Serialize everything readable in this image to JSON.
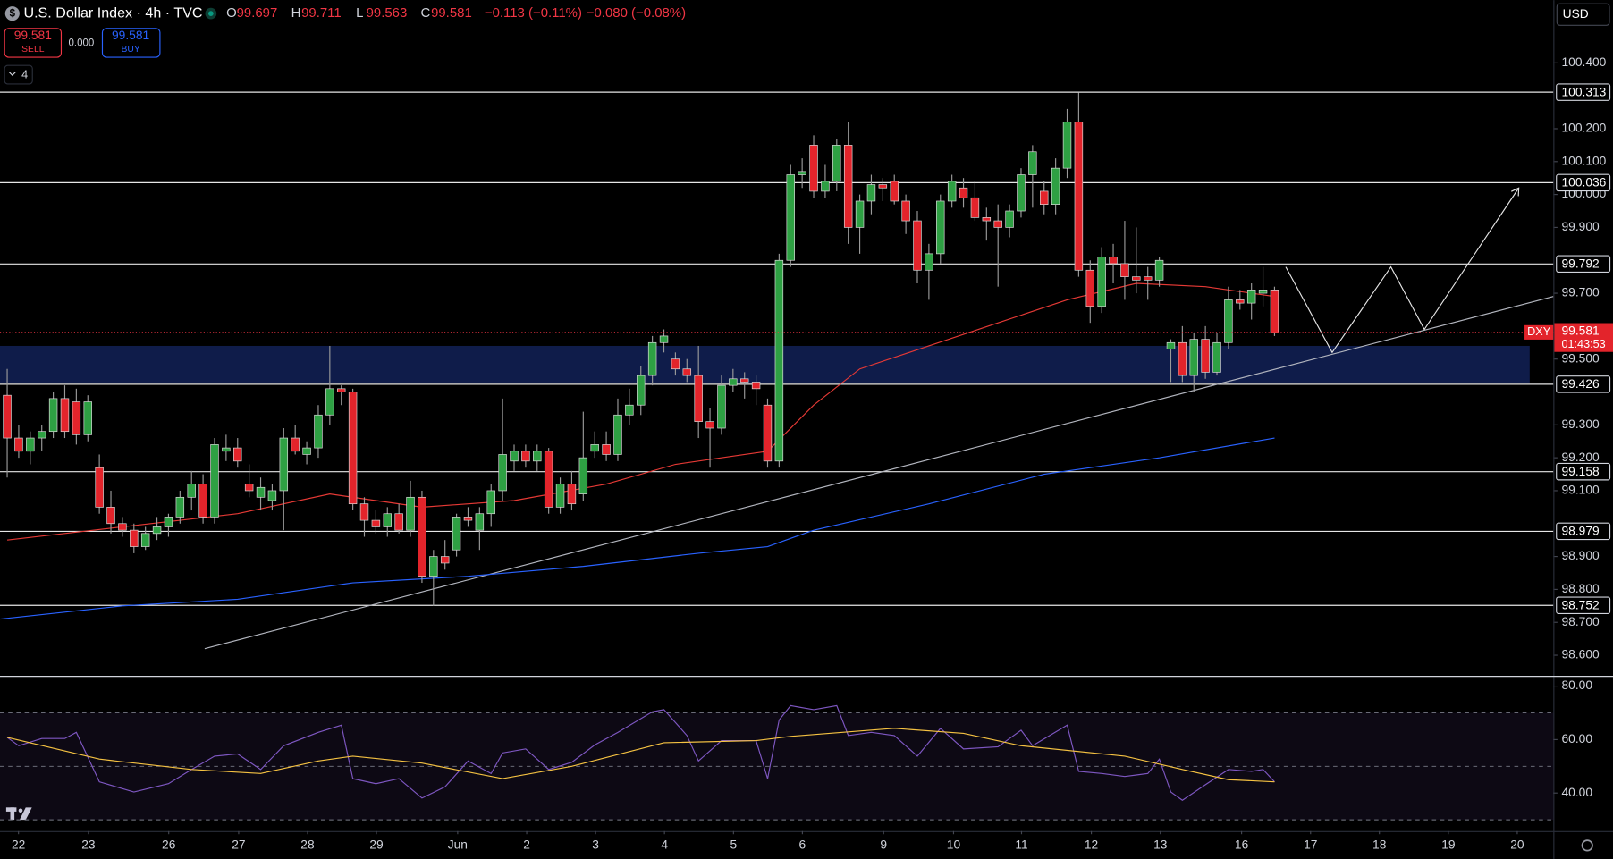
{
  "header": {
    "title": "U.S. Dollar Index · 4h · TVC",
    "ohlc": [
      {
        "k": "O",
        "v": "99.697"
      },
      {
        "k": "H",
        "v": "99.711"
      },
      {
        "k": "L",
        "v": "99.563"
      },
      {
        "k": "C",
        "v": "99.581"
      }
    ],
    "change": "−0.113 (−0.11%)",
    "change2": "−0.080 (−0.08%)",
    "sell": {
      "price": "99.581",
      "label": "SELL"
    },
    "spread": "0.000",
    "buy": {
      "price": "99.581",
      "label": "BUY"
    },
    "indicators": "4",
    "currency": "USD"
  },
  "chart_data": [
    {
      "type": "candlestick",
      "up_color": "#2ea043",
      "down_color": "#e3242b",
      "xlim": [
        -0.625,
        134.2
      ],
      "ylim": [
        98.5375,
        100.590625
      ],
      "yticks": [
        {
          "value": 100.4,
          "label": "100.400"
        },
        {
          "value": 100.2,
          "label": "100.200"
        },
        {
          "value": 100.1,
          "label": "100.100"
        },
        {
          "value": 100.0,
          "label": "100.000"
        },
        {
          "value": 99.9,
          "label": "99.900"
        },
        {
          "value": 99.7,
          "label": "99.700"
        },
        {
          "value": 99.5,
          "label": "99.500"
        },
        {
          "value": 99.3,
          "label": "99.300"
        },
        {
          "value": 99.2,
          "label": "99.200"
        },
        {
          "value": 99.1,
          "label": "99.100"
        },
        {
          "value": 98.9,
          "label": "98.900"
        },
        {
          "value": 98.8,
          "label": "98.800"
        },
        {
          "value": 98.7,
          "label": "98.700"
        },
        {
          "value": 98.6,
          "label": "98.600"
        }
      ],
      "xticks": [
        {
          "value": 0.98,
          "label": "22"
        },
        {
          "value": 7.05,
          "label": "23"
        },
        {
          "value": 14.02,
          "label": "26"
        },
        {
          "value": 20.09,
          "label": "27"
        },
        {
          "value": 26.07,
          "label": "28"
        },
        {
          "value": 32.05,
          "label": "29"
        },
        {
          "value": 39.1,
          "label": "Jun"
        },
        {
          "value": 45.09,
          "label": "2"
        },
        {
          "value": 51.07,
          "label": "3"
        },
        {
          "value": 57.05,
          "label": "4"
        },
        {
          "value": 63.04,
          "label": "5"
        },
        {
          "value": 69.02,
          "label": "6"
        },
        {
          "value": 76.07,
          "label": "9"
        },
        {
          "value": 82.14,
          "label": "10"
        },
        {
          "value": 88.04,
          "label": "11"
        },
        {
          "value": 94.1,
          "label": "12"
        },
        {
          "value": 100.09,
          "label": "13"
        },
        {
          "value": 107.14,
          "label": "16"
        },
        {
          "value": 113.13,
          "label": "17"
        },
        {
          "value": 119.1,
          "label": "18"
        },
        {
          "value": 125.09,
          "label": "19"
        },
        {
          "value": 131.07,
          "label": "20"
        }
      ],
      "ohlc": [
        [
          99.39,
          99.47,
          99.14,
          99.26
        ],
        [
          99.26,
          99.3,
          99.2,
          99.22
        ],
        [
          99.22,
          99.28,
          99.18,
          99.26
        ],
        [
          99.26,
          99.3,
          99.22,
          99.28
        ],
        [
          99.28,
          99.4,
          99.26,
          99.38
        ],
        [
          99.38,
          99.42,
          99.26,
          99.28
        ],
        [
          99.37,
          99.41,
          99.24,
          99.27
        ],
        [
          99.27,
          99.39,
          99.25,
          99.37
        ],
        [
          99.17,
          99.21,
          99.03,
          99.05
        ],
        [
          99.05,
          99.1,
          98.97,
          99.0
        ],
        [
          99.0,
          99.02,
          98.96,
          98.98
        ],
        [
          98.98,
          99.0,
          98.91,
          98.93
        ],
        [
          98.93,
          98.99,
          98.92,
          98.97
        ],
        [
          98.97,
          99.02,
          98.95,
          98.99
        ],
        [
          98.99,
          99.03,
          98.96,
          99.02
        ],
        [
          99.02,
          99.1,
          99.0,
          99.08
        ],
        [
          99.08,
          99.16,
          99.04,
          99.12
        ],
        [
          99.12,
          99.15,
          99.0,
          99.02
        ],
        [
          99.02,
          99.26,
          99.0,
          99.24
        ],
        [
          99.22,
          99.27,
          99.19,
          99.23
        ],
        [
          99.23,
          99.26,
          99.17,
          99.19
        ],
        [
          99.12,
          99.18,
          99.08,
          99.1
        ],
        [
          99.08,
          99.14,
          99.04,
          99.11
        ],
        [
          99.07,
          99.12,
          99.04,
          99.1
        ],
        [
          99.1,
          99.29,
          98.98,
          99.26
        ],
        [
          99.26,
          99.3,
          99.21,
          99.22
        ],
        [
          99.21,
          99.25,
          99.18,
          99.23
        ],
        [
          99.23,
          99.36,
          99.2,
          99.33
        ],
        [
          99.33,
          99.54,
          99.3,
          99.41
        ],
        [
          99.41,
          99.42,
          99.36,
          99.4
        ],
        [
          99.4,
          99.41,
          99.04,
          99.06
        ],
        [
          99.06,
          99.08,
          98.96,
          99.01
        ],
        [
          99.01,
          99.04,
          98.97,
          98.99
        ],
        [
          98.99,
          99.05,
          98.96,
          99.03
        ],
        [
          99.03,
          99.06,
          98.97,
          98.98
        ],
        [
          98.98,
          99.13,
          98.96,
          99.08
        ],
        [
          99.08,
          99.1,
          98.82,
          98.84
        ],
        [
          98.84,
          98.92,
          98.75,
          98.9
        ],
        [
          98.9,
          98.95,
          98.86,
          98.88
        ],
        [
          98.92,
          99.03,
          98.9,
          99.02
        ],
        [
          99.02,
          99.05,
          98.99,
          99.01
        ],
        [
          98.98,
          99.05,
          98.92,
          99.03
        ],
        [
          99.03,
          99.12,
          98.99,
          99.1
        ],
        [
          99.1,
          99.38,
          99.07,
          99.21
        ],
        [
          99.19,
          99.24,
          99.16,
          99.22
        ],
        [
          99.22,
          99.24,
          99.17,
          99.19
        ],
        [
          99.19,
          99.24,
          99.16,
          99.22
        ],
        [
          99.22,
          99.23,
          99.03,
          99.05
        ],
        [
          99.05,
          99.14,
          99.03,
          99.12
        ],
        [
          99.12,
          99.16,
          99.04,
          99.06
        ],
        [
          99.09,
          99.34,
          99.07,
          99.2
        ],
        [
          99.22,
          99.28,
          99.2,
          99.24
        ],
        [
          99.24,
          99.28,
          99.19,
          99.21
        ],
        [
          99.21,
          99.38,
          99.19,
          99.33
        ],
        [
          99.33,
          99.41,
          99.3,
          99.36
        ],
        [
          99.36,
          99.48,
          99.33,
          99.45
        ],
        [
          99.45,
          99.57,
          99.42,
          99.55
        ],
        [
          99.55,
          99.59,
          99.52,
          99.57
        ],
        [
          99.5,
          99.52,
          99.45,
          99.47
        ],
        [
          99.47,
          99.5,
          99.43,
          99.45
        ],
        [
          99.45,
          99.54,
          99.26,
          99.31
        ],
        [
          99.31,
          99.35,
          99.17,
          99.29
        ],
        [
          99.29,
          99.45,
          99.27,
          99.42
        ],
        [
          99.42,
          99.47,
          99.4,
          99.44
        ],
        [
          99.44,
          99.46,
          99.38,
          99.43
        ],
        [
          99.43,
          99.45,
          99.36,
          99.41
        ],
        [
          99.36,
          99.38,
          99.17,
          99.19
        ],
        [
          99.19,
          99.82,
          99.17,
          99.8
        ],
        [
          99.8,
          100.09,
          99.78,
          100.06
        ],
        [
          100.06,
          100.11,
          100.02,
          100.07
        ],
        [
          100.15,
          100.18,
          99.99,
          100.01
        ],
        [
          100.01,
          100.09,
          99.99,
          100.04
        ],
        [
          100.04,
          100.17,
          100.01,
          100.15
        ],
        [
          100.15,
          100.22,
          99.85,
          99.9
        ],
        [
          99.9,
          100.0,
          99.82,
          99.98
        ],
        [
          99.98,
          100.06,
          99.94,
          100.03
        ],
        [
          100.03,
          100.05,
          99.98,
          100.02
        ],
        [
          100.04,
          100.06,
          99.97,
          99.98
        ],
        [
          99.98,
          100.0,
          99.88,
          99.92
        ],
        [
          99.92,
          99.95,
          99.73,
          99.77
        ],
        [
          99.77,
          99.85,
          99.68,
          99.82
        ],
        [
          99.82,
          100.0,
          99.79,
          99.98
        ],
        [
          99.98,
          100.06,
          99.96,
          100.04
        ],
        [
          100.02,
          100.05,
          99.96,
          99.99
        ],
        [
          99.99,
          100.04,
          99.92,
          99.93
        ],
        [
          99.93,
          99.96,
          99.86,
          99.92
        ],
        [
          99.92,
          99.97,
          99.72,
          99.9
        ],
        [
          99.9,
          99.97,
          99.87,
          99.95
        ],
        [
          99.95,
          100.08,
          99.93,
          100.06
        ],
        [
          100.06,
          100.15,
          99.96,
          100.13
        ],
        [
          100.01,
          100.04,
          99.94,
          99.97
        ],
        [
          99.97,
          100.11,
          99.94,
          100.08
        ],
        [
          100.08,
          100.26,
          100.05,
          100.22
        ],
        [
          100.22,
          100.31,
          99.75,
          99.77
        ],
        [
          99.77,
          99.8,
          99.61,
          99.66
        ],
        [
          99.66,
          99.84,
          99.64,
          99.81
        ],
        [
          99.81,
          99.85,
          99.73,
          99.79
        ],
        [
          99.79,
          99.92,
          99.68,
          99.75
        ],
        [
          99.75,
          99.9,
          99.7,
          99.74
        ],
        [
          99.75,
          99.78,
          99.68,
          99.74
        ],
        [
          99.74,
          99.81,
          99.72,
          99.8
        ],
        [
          99.53,
          99.56,
          99.43,
          99.55
        ],
        [
          99.55,
          99.6,
          99.43,
          99.45
        ],
        [
          99.45,
          99.58,
          99.4,
          99.56
        ],
        [
          99.56,
          99.6,
          99.44,
          99.46
        ],
        [
          99.46,
          99.58,
          99.45,
          99.55
        ],
        [
          99.55,
          99.72,
          99.53,
          99.68
        ],
        [
          99.68,
          99.71,
          99.65,
          99.67
        ],
        [
          99.67,
          99.73,
          99.62,
          99.71
        ],
        [
          99.7,
          99.78,
          99.66,
          99.71
        ],
        [
          99.71,
          99.72,
          99.57,
          99.58
        ]
      ],
      "series": [
        {
          "color": "#e53935",
          "x": [
            0,
            10,
            20,
            28,
            36,
            44,
            52,
            58,
            66,
            70,
            74,
            80,
            86,
            92,
            98,
            104,
            110
          ],
          "values": [
            98.95,
            98.99,
            99.03,
            99.09,
            99.05,
            99.07,
            99.12,
            99.18,
            99.22,
            99.36,
            99.47,
            99.54,
            99.61,
            99.68,
            99.73,
            99.72,
            99.69
          ]
        },
        {
          "color": "#2962ff",
          "x": [
            -0.6,
            10,
            20,
            30,
            40,
            50,
            60,
            66,
            70,
            80,
            90,
            100,
            110
          ],
          "values": [
            98.71,
            98.75,
            98.77,
            98.82,
            98.84,
            98.87,
            98.91,
            98.93,
            98.98,
            99.06,
            99.15,
            99.2,
            99.26
          ]
        }
      ],
      "levels": [
        100.313,
        100.036,
        99.792,
        99.426,
        99.158,
        98.979,
        98.752
      ],
      "zone": [
        99.426,
        99.54
      ],
      "trendline": {
        "x": [
          17.14,
          134.2
        ],
        "y": [
          98.62,
          99.69
        ]
      },
      "projection": {
        "x": [
          110.98,
          115,
          120.1,
          123,
          131.2
        ],
        "y": [
          99.78,
          99.52,
          99.78,
          99.59,
          100.02
        ]
      },
      "last": 99.581,
      "symbol": "DXY",
      "countdown": "01:43:53"
    },
    {
      "type": "line",
      "ylim": [
        25.77,
        83.85
      ],
      "yticks": [
        {
          "value": 80,
          "label": "80.00"
        },
        {
          "value": 60,
          "label": "60.00"
        },
        {
          "value": 40,
          "label": "40.00"
        }
      ],
      "levels": [
        70,
        50,
        30
      ],
      "series": [
        {
          "color": "#7e57c2",
          "x": [
            0,
            1,
            3,
            5,
            6,
            8,
            11,
            14,
            16,
            18,
            20,
            22,
            24,
            27,
            29,
            30,
            32,
            34,
            36,
            38,
            40,
            42,
            43,
            45,
            47,
            49,
            51,
            53,
            56,
            57,
            59,
            60,
            62,
            65,
            66,
            67,
            68,
            70,
            72,
            73,
            75,
            77,
            79,
            81,
            83,
            86,
            88,
            89,
            92,
            93,
            95,
            97,
            99,
            100,
            101,
            102,
            104,
            106,
            108,
            109,
            110
          ],
          "values": [
            60.8,
            57.7,
            60.4,
            60.4,
            62.7,
            44.2,
            40.4,
            43.5,
            48.8,
            53.8,
            54.6,
            48.8,
            57.7,
            62.7,
            65.4,
            45.4,
            43.5,
            45.4,
            38.1,
            42.3,
            52.0,
            47.3,
            55.0,
            56.5,
            48.8,
            51.5,
            58.0,
            62.7,
            70.4,
            71.2,
            61.5,
            52.0,
            59.6,
            59.6,
            45.4,
            67.3,
            72.7,
            71.2,
            72.7,
            61.5,
            62.7,
            61.5,
            53.8,
            64.2,
            56.5,
            57.3,
            63.5,
            57.7,
            65.4,
            48.1,
            47.3,
            46.2,
            47.3,
            52.7,
            40.4,
            37.3,
            43.1,
            48.8,
            48.1,
            48.8,
            44.2
          ]
        },
        {
          "color": "#f5c242",
          "x": [
            0,
            8,
            16,
            22,
            27,
            30,
            36,
            43,
            49,
            57,
            65,
            68,
            77,
            83,
            88,
            97,
            102,
            106,
            110
          ],
          "values": [
            60.8,
            52.7,
            48.8,
            47.3,
            52.0,
            53.8,
            51.2,
            45.4,
            50.0,
            58.8,
            59.6,
            61.2,
            64.2,
            62.3,
            57.7,
            53.8,
            48.8,
            45.0,
            44.2
          ]
        }
      ]
    }
  ]
}
